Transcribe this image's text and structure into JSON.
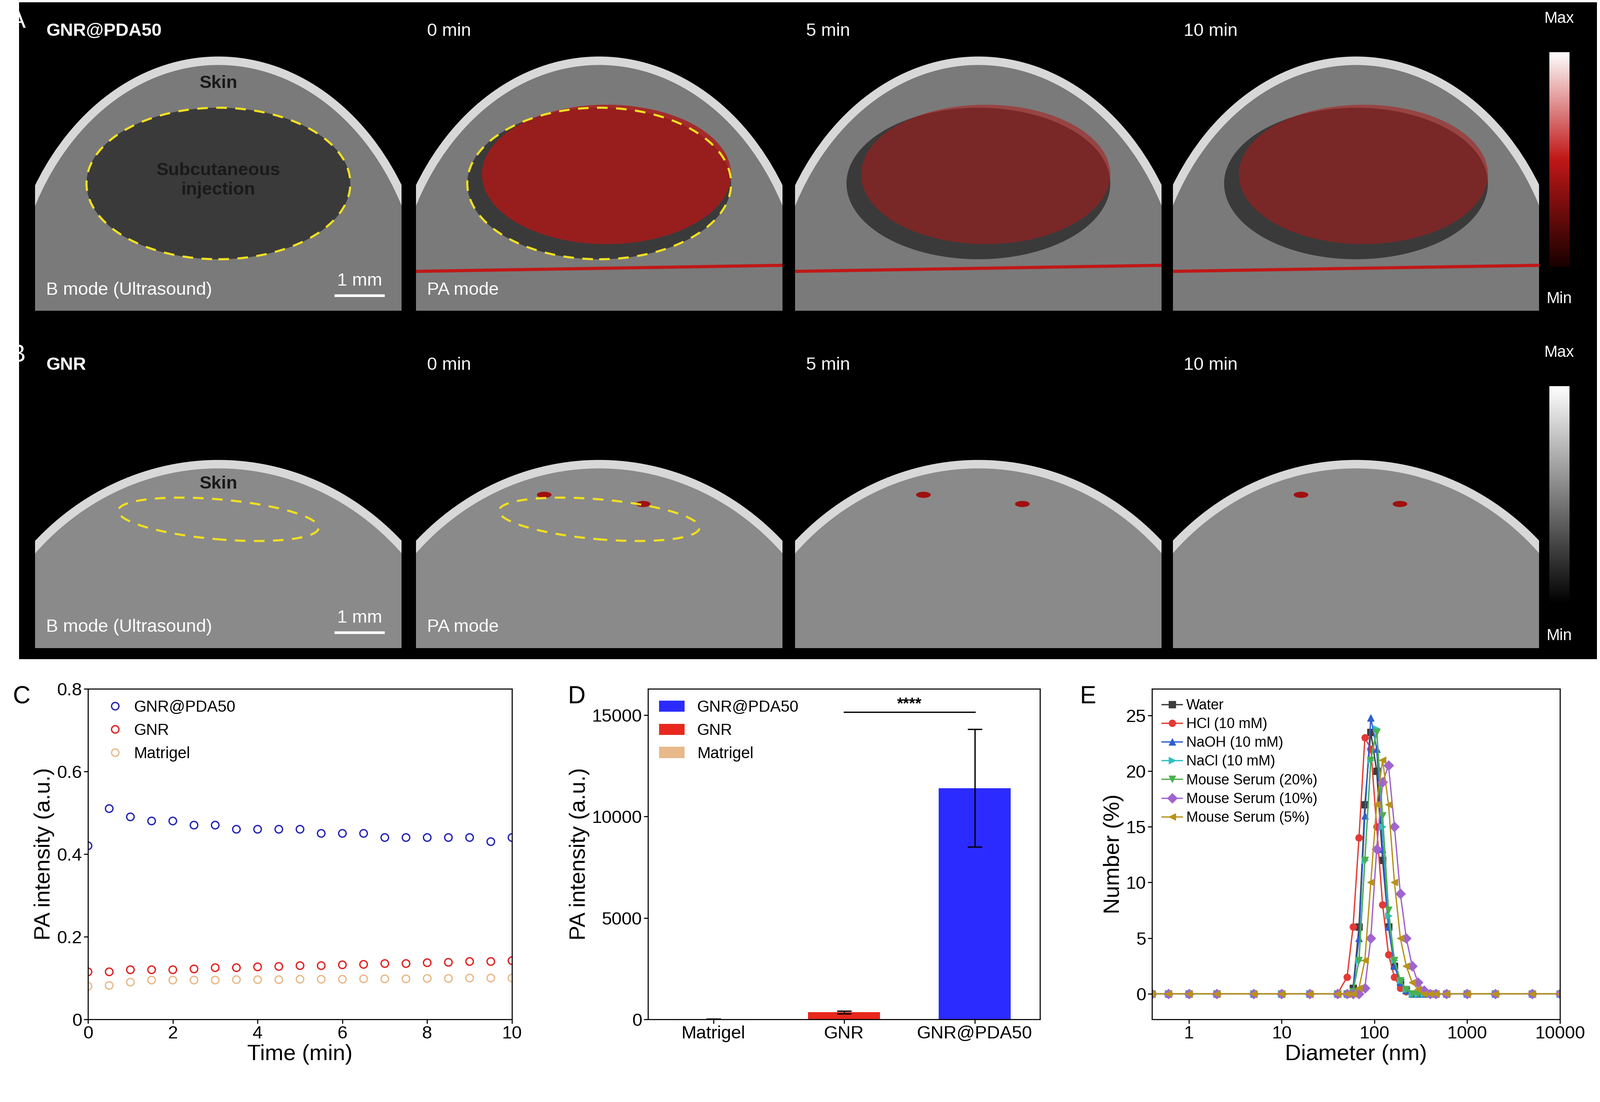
{
  "image_rows": [
    {
      "label": "A",
      "sample": "GNR@PDA50",
      "frames": [
        "0 min",
        "5 min",
        "10 min"
      ],
      "annotations": [
        "Skin",
        "Subcutaneous\ninjection"
      ],
      "modes": [
        "B mode (Ultrasound)",
        "PA mode"
      ],
      "scale_bar": "1 mm",
      "colorbar": [
        "Max",
        "Min"
      ]
    },
    {
      "label": "B",
      "sample": "GNR",
      "frames": [
        "0 min",
        "5 min",
        "10 min"
      ],
      "annotations": [
        "Skin"
      ],
      "modes": [
        "B mode (Ultrasound)",
        "PA mode"
      ],
      "scale_bar": "1 mm",
      "colorbar": [
        "Max",
        "Min"
      ]
    }
  ],
  "chart_data": [
    {
      "type": "scatter",
      "panel": "C",
      "x_label": "Time (min)",
      "y_label": "PA intensity (a.u.)",
      "x": [
        0,
        0.5,
        1,
        1.5,
        2,
        2.5,
        3,
        3.5,
        4,
        4.5,
        5,
        5.5,
        6,
        6.5,
        7,
        7.5,
        8,
        8.5,
        9,
        9.5,
        10
      ],
      "series": [
        {
          "name": "GNR@PDA50",
          "color": "#2323b4",
          "values": [
            0.42,
            0.51,
            0.49,
            0.48,
            0.48,
            0.47,
            0.47,
            0.46,
            0.46,
            0.46,
            0.46,
            0.45,
            0.45,
            0.45,
            0.44,
            0.44,
            0.44,
            0.44,
            0.44,
            0.43,
            0.44
          ]
        },
        {
          "name": "GNR",
          "color": "#e02020",
          "values": [
            0.115,
            0.115,
            0.12,
            0.12,
            0.12,
            0.122,
            0.125,
            0.125,
            0.127,
            0.128,
            0.13,
            0.13,
            0.132,
            0.133,
            0.135,
            0.135,
            0.137,
            0.138,
            0.14,
            0.14,
            0.142
          ]
        },
        {
          "name": "Matrigel",
          "color": "#e8b98a",
          "values": [
            0.08,
            0.082,
            0.09,
            0.095,
            0.095,
            0.095,
            0.095,
            0.096,
            0.096,
            0.096,
            0.097,
            0.097,
            0.097,
            0.098,
            0.098,
            0.098,
            0.099,
            0.099,
            0.1,
            0.1,
            0.1
          ]
        }
      ],
      "marker": "circle",
      "xlim": [
        0,
        10
      ],
      "xticks": [
        0,
        2,
        4,
        6,
        8,
        10
      ],
      "ylim": [
        0,
        0.8
      ],
      "yticks": [
        0,
        0.2,
        0.4,
        0.6,
        0.8
      ],
      "legend": "upper left"
    },
    {
      "type": "bar",
      "panel": "D",
      "y_label": "PA intensity (a.u.)",
      "categories": [
        "Matrigel",
        "GNR",
        "GNR@PDA50"
      ],
      "values": [
        20,
        350,
        11400
      ],
      "errors": [
        5,
        60,
        2900
      ],
      "colors": [
        "#e8b98a",
        "#e8281e",
        "#2b2bff"
      ],
      "ylim": [
        0,
        16300
      ],
      "yticks": [
        0,
        5000,
        10000,
        15000
      ],
      "significance": {
        "text": "****",
        "between": [
          "GNR",
          "GNR@PDA50"
        ]
      },
      "legend": "upper left"
    },
    {
      "type": "line",
      "panel": "E",
      "x_label": "Diameter (nm)",
      "y_label": "Number (%)",
      "log": "x",
      "x": [
        0.4,
        0.6,
        1,
        2,
        5,
        10,
        20,
        40,
        50.7,
        58.8,
        68.1,
        78.8,
        91.3,
        105.7,
        122.4,
        141.8,
        164.2,
        190.1,
        220.2,
        255.0,
        295.3,
        342.0,
        396.1,
        458.7,
        600,
        1000,
        2000,
        5000,
        10000
      ],
      "series": [
        {
          "name": "Water",
          "color": "#3c3c3c",
          "marker": "square",
          "values": [
            0,
            0,
            0,
            0,
            0,
            0,
            0,
            0,
            0,
            0.5,
            6,
            17,
            23.5,
            20,
            12,
            6,
            2.5,
            1,
            0.3,
            0,
            0,
            0,
            0,
            0,
            0,
            0,
            0,
            0,
            0
          ]
        },
        {
          "name": "HCl (10 mM)",
          "color": "#e53935",
          "marker": "circle",
          "values": [
            0,
            0,
            0,
            0,
            0,
            0,
            0,
            0,
            1.5,
            6,
            14,
            23,
            22,
            15,
            8,
            3.5,
            1.5,
            0.5,
            0.2,
            0,
            0,
            0,
            0,
            0,
            0,
            0,
            0,
            0,
            0
          ]
        },
        {
          "name": "NaOH (10 mM)",
          "color": "#2f5fd0",
          "marker": "triangle_up",
          "values": [
            0,
            0,
            0,
            0,
            0,
            0,
            0,
            0,
            0,
            0.3,
            5,
            16,
            24.8,
            22,
            13,
            6,
            2.5,
            1,
            0.3,
            0,
            0,
            0,
            0,
            0,
            0,
            0,
            0,
            0,
            0
          ]
        },
        {
          "name": "NaCl (10 mM)",
          "color": "#30c0c0",
          "marker": "triangle_right",
          "values": [
            0,
            0,
            0,
            0,
            0,
            0,
            0,
            0,
            0,
            0.2,
            3,
            12,
            21,
            23.8,
            15,
            7,
            3,
            1.2,
            0.4,
            0,
            0,
            0,
            0,
            0,
            0,
            0,
            0,
            0,
            0
          ]
        },
        {
          "name": "Mouse Serum (20%)",
          "color": "#4caf50",
          "marker": "triangle_down",
          "values": [
            0,
            0,
            0,
            0,
            0,
            0,
            0,
            0,
            0,
            0.2,
            3,
            12,
            21,
            23.5,
            16,
            7.5,
            3,
            1.2,
            0.4,
            0,
            0,
            0,
            0,
            0,
            0,
            0,
            0,
            0,
            0
          ]
        },
        {
          "name": "Mouse Serum (10%)",
          "color": "#a064d0",
          "marker": "diamond",
          "values": [
            0,
            0,
            0,
            0,
            0,
            0,
            0,
            0,
            0,
            0,
            0,
            0.5,
            5,
            13,
            19,
            20.5,
            15,
            9,
            5,
            2.5,
            1,
            0.3,
            0,
            0,
            0,
            0,
            0,
            0,
            0
          ]
        },
        {
          "name": "Mouse Serum (5%)",
          "color": "#b8921a",
          "marker": "triangle_left",
          "values": [
            0,
            0,
            0,
            0,
            0,
            0,
            0,
            0,
            0,
            0,
            0.5,
            3,
            10,
            17,
            21,
            17,
            10,
            5,
            2.5,
            1,
            0.4,
            0,
            0,
            0,
            0,
            0,
            0,
            0,
            0
          ]
        }
      ],
      "xlim": [
        0.4,
        10000
      ],
      "xticks": [
        1,
        10,
        100,
        1000,
        10000
      ],
      "ylim": [
        -2.3,
        27.4
      ],
      "yticks": [
        0,
        5,
        10,
        15,
        20,
        25
      ],
      "legend": "upper left"
    }
  ]
}
